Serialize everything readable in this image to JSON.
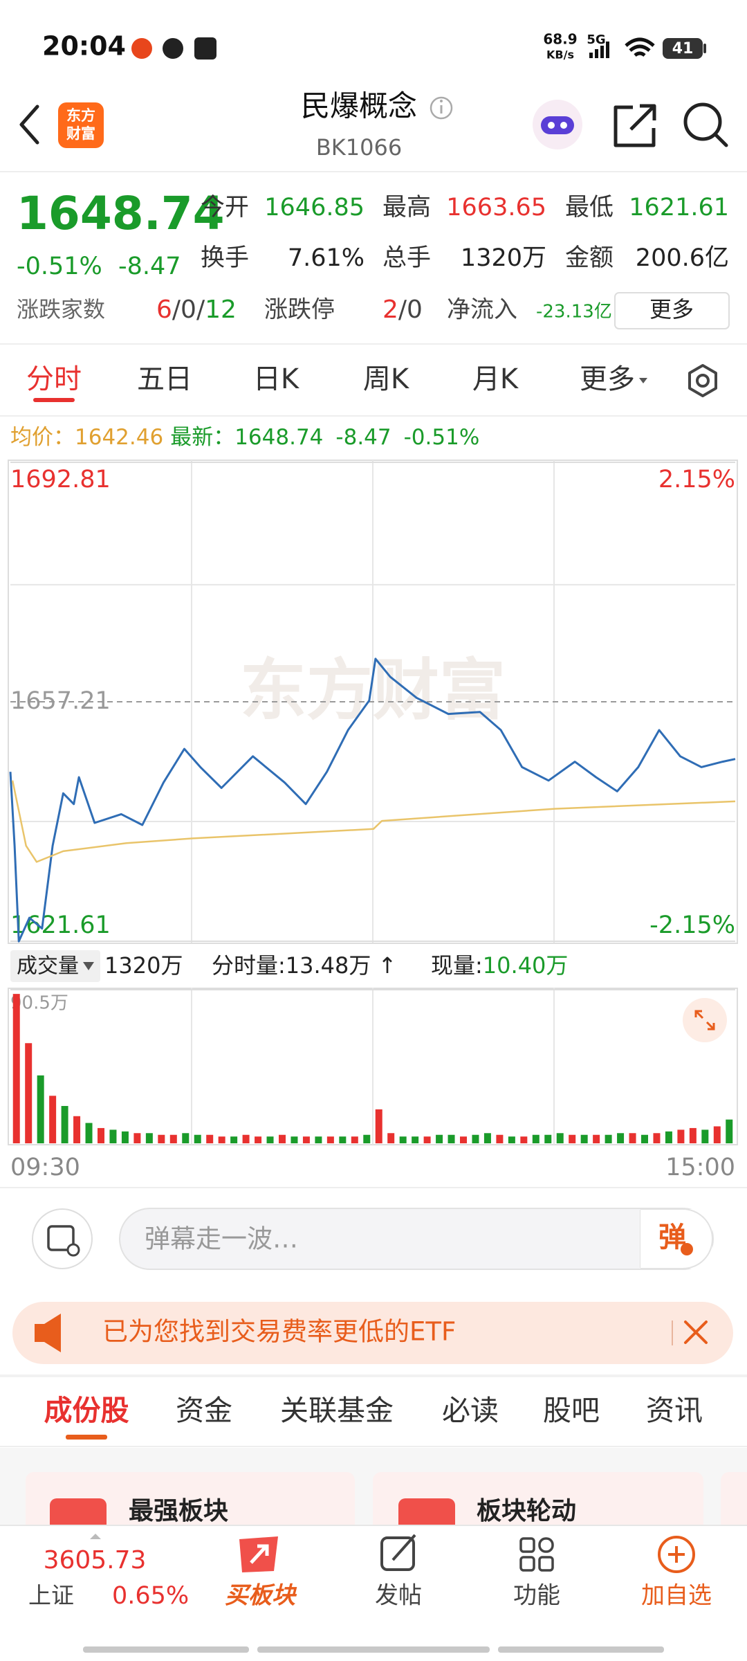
{
  "status_bar": {
    "time": "20:04",
    "speed": "68.9",
    "speed_unit": "KB/s",
    "network": "5G",
    "battery": "41"
  },
  "header": {
    "logo": [
      "东方",
      "财富"
    ],
    "title": "民爆概念",
    "code": "BK1066"
  },
  "quote": {
    "price": "1648.74",
    "change_pct": "-0.51%",
    "change": "-8.47",
    "stats": [
      {
        "label": "今开",
        "value": "1646.85",
        "color": "#1a9b2a"
      },
      {
        "label": "最高",
        "value": "1663.65",
        "color": "#e8312f"
      },
      {
        "label": "最低",
        "value": "1621.61",
        "color": "#1a9b2a"
      },
      {
        "label": "换手",
        "value": "7.61%",
        "color": "#222222"
      },
      {
        "label": "总手",
        "value": "1320万",
        "color": "#222222"
      },
      {
        "label": "金额",
        "value": "200.6亿",
        "color": "#222222"
      }
    ],
    "breadth_label": "涨跌家数",
    "up": "6",
    "flat": "0",
    "down": "12",
    "separator": "/",
    "limit_label": "涨跌停",
    "limit_up": "2",
    "limit_down": "0",
    "netflow_label": "净流入",
    "netflow": "-23.13亿",
    "more": "更多"
  },
  "tabs": {
    "items": [
      "分时",
      "五日",
      "日K",
      "周K",
      "月K",
      "更多"
    ],
    "active": 0
  },
  "chart_info": {
    "avg_label": "均价：",
    "avg": "1642.46",
    "latest_label": "最新：",
    "latest": "1648.74",
    "change": "-8.47",
    "change_pct": "-0.51%"
  },
  "chart_data": [
    {
      "type": "line",
      "watermark": "东方财富",
      "xlim": [
        0,
        240
      ],
      "xgrid": [
        60,
        120,
        180
      ],
      "ylim": [
        1621.61,
        1692.81
      ],
      "yticks": [
        1621.61,
        1657.21,
        1692.81
      ],
      "ytick_colors": [
        "#1a9b2a",
        "#999999",
        "#e8312f"
      ],
      "ygrid": [
        1639.41,
        1674.61
      ],
      "y2lim": [
        -2.15,
        2.15
      ],
      "y2ticks": [
        {
          "value": -2.15,
          "label": "-2.15%"
        },
        {
          "value": 2.15,
          "label": "2.15%"
        }
      ],
      "y2tick_colors": [
        "#1a9b2a",
        "#e8312f"
      ],
      "series": [
        {
          "color": "#2f6db5",
          "x": [
            0,
            1.4,
            2.8,
            6.3,
            10.5,
            14,
            17.5,
            21,
            22.7,
            27.9,
            36.7,
            43.7,
            50.7,
            57.6,
            62.9,
            69.9,
            80.3,
            90.8,
            97.8,
            104.8,
            111.8,
            118.8,
            120.9,
            125.8,
            134.5,
            145,
            155.5,
            162.4,
            169.4,
            178.2,
            186.9,
            193.9,
            200.9,
            207.9,
            214.8,
            221.8,
            228.8,
            235.8,
            240
          ],
          "values": [
            1646.8,
            1635.8,
            1621.6,
            1625.1,
            1623.5,
            1635.8,
            1643.6,
            1642.0,
            1646.0,
            1639.2,
            1640.5,
            1638.9,
            1645.2,
            1650.2,
            1647.5,
            1644.4,
            1649.1,
            1645.2,
            1642.0,
            1646.8,
            1653.0,
            1657.4,
            1663.6,
            1660.9,
            1657.8,
            1655.4,
            1655.7,
            1653.0,
            1647.5,
            1645.5,
            1648.3,
            1646.0,
            1643.9,
            1647.5,
            1653.0,
            1649.1,
            1647.5,
            1648.3,
            1648.7
          ]
        },
        {
          "color": "#e9c46a",
          "x": [
            0.7,
            5.2,
            8.7,
            17.5,
            38.4,
            60.4,
            120.2,
            123,
            180.3,
            240
          ],
          "values": [
            1645.5,
            1635.8,
            1633.4,
            1635.0,
            1636.2,
            1636.9,
            1638.3,
            1639.5,
            1641.3,
            1642.4
          ]
        }
      ]
    },
    {
      "type": "bar",
      "label": "成交量",
      "total": "1320万",
      "period": "分时量:13.48万 ↑",
      "current_label": "现量:",
      "current": "10.40万",
      "xlim": [
        0,
        240
      ],
      "xgrid": [
        60,
        120,
        180
      ],
      "xticks": [
        {
          "value": 0,
          "label": "09:30"
        },
        {
          "value": 240,
          "label": "15:00"
        }
      ],
      "ylim": [
        0,
        90.5
      ],
      "yticks": [
        {
          "value": 90.5,
          "label": "90.5万"
        }
      ],
      "x": [
        2,
        6,
        10,
        14,
        18,
        22,
        26,
        30,
        34,
        38,
        42,
        46,
        50,
        54,
        58,
        62,
        66,
        70,
        74,
        78,
        82,
        86,
        90,
        94,
        98,
        102,
        106,
        110,
        114,
        118,
        122,
        126,
        130,
        134,
        138,
        142,
        146,
        150,
        154,
        158,
        162,
        166,
        170,
        174,
        178,
        182,
        186,
        190,
        194,
        198,
        202,
        206,
        210,
        214,
        218,
        222,
        226,
        230,
        234,
        238
      ],
      "values": [
        88,
        59,
        40,
        28,
        22,
        16,
        12,
        9,
        8,
        7,
        6,
        6,
        5,
        5,
        6,
        5,
        5,
        4,
        4,
        5,
        4,
        4,
        5,
        4,
        4,
        4,
        4,
        4,
        4,
        5,
        20,
        6,
        4,
        4,
        4,
        5,
        5,
        4,
        5,
        6,
        5,
        4,
        4,
        5,
        5,
        6,
        5,
        5,
        5,
        5,
        6,
        6,
        5,
        6,
        7,
        8,
        9,
        8,
        10,
        14
      ],
      "colors": [
        "#e8312f",
        "#e8312f",
        "#1a9b2a",
        "#e8312f",
        "#1a9b2a",
        "#e8312f",
        "#1a9b2a",
        "#e8312f",
        "#1a9b2a",
        "#1a9b2a",
        "#e8312f",
        "#1a9b2a",
        "#e8312f",
        "#e8312f",
        "#1a9b2a",
        "#1a9b2a",
        "#e8312f",
        "#e8312f",
        "#1a9b2a",
        "#e8312f",
        "#e8312f",
        "#1a9b2a",
        "#e8312f",
        "#1a9b2a",
        "#e8312f",
        "#1a9b2a",
        "#e8312f",
        "#1a9b2a",
        "#e8312f",
        "#1a9b2a",
        "#e8312f",
        "#e8312f",
        "#1a9b2a",
        "#1a9b2a",
        "#e8312f",
        "#1a9b2a",
        "#1a9b2a",
        "#e8312f",
        "#1a9b2a",
        "#1a9b2a",
        "#e8312f",
        "#1a9b2a",
        "#e8312f",
        "#1a9b2a",
        "#1a9b2a",
        "#1a9b2a",
        "#e8312f",
        "#1a9b2a",
        "#e8312f",
        "#1a9b2a",
        "#1a9b2a",
        "#e8312f",
        "#1a9b2a",
        "#e8312f",
        "#1a9b2a",
        "#e8312f",
        "#e8312f",
        "#1a9b2a",
        "#e8312f",
        "#1a9b2a"
      ]
    }
  ],
  "comment": {
    "placeholder": "弹幕走一波…",
    "button": "弹"
  },
  "banner": {
    "text": "已为您找到交易费率更低的ETF"
  },
  "section_tabs": {
    "items": [
      "成份股",
      "资金",
      "关联基金",
      "必读",
      "股吧",
      "资讯"
    ],
    "active": 0
  },
  "cards": [
    {
      "title": "最强板块"
    },
    {
      "title": "板块轮动"
    }
  ],
  "bottom_nav": {
    "index": {
      "value": "3605.73",
      "name": "上证",
      "change_pct": "0.65%"
    },
    "items": [
      {
        "label": "买板块",
        "color": "#e85d1c"
      },
      {
        "label": "发帖",
        "color": "#444444"
      },
      {
        "label": "功能",
        "color": "#444444"
      },
      {
        "label": "加自选",
        "color": "#e85d1c"
      }
    ]
  }
}
